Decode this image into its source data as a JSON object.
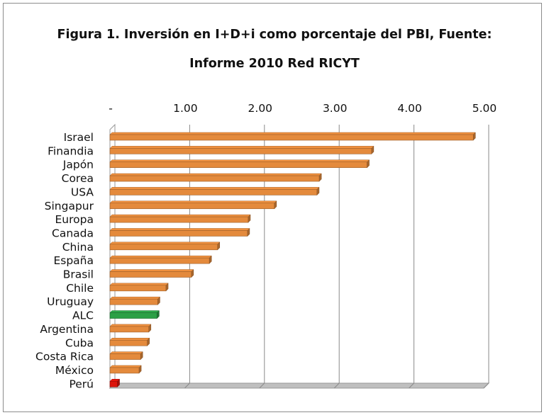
{
  "chart_data": {
    "type": "bar",
    "orientation": "horizontal",
    "title": "Figura 1. Inversión en I+D+i como porcentaje del PBI, Fuente:",
    "subtitle": "Informe 2010 Red RICYT",
    "xlim": [
      0,
      5
    ],
    "x_axis_position": "top",
    "grid": true,
    "tick_labels": [
      "-",
      "1.00",
      "2.00",
      "3.00",
      "4.00",
      "5.00"
    ],
    "tick_values": [
      0,
      1,
      2,
      3,
      4,
      5
    ],
    "categories": [
      "Israel",
      "Finandia",
      "Japón",
      "Corea",
      "USA",
      "Singapur",
      "Europa",
      "Canada",
      "China",
      "España",
      "Brasil",
      "Chile",
      "Uruguay",
      "ALC",
      "Argentina",
      "Cuba",
      "Costa Rica",
      "México",
      "Perú"
    ],
    "values": [
      4.86,
      3.5,
      3.44,
      2.8,
      2.77,
      2.2,
      1.85,
      1.84,
      1.44,
      1.33,
      1.09,
      0.75,
      0.64,
      0.63,
      0.52,
      0.5,
      0.41,
      0.39,
      0.1
    ],
    "bar_colors": [
      "#f0913f",
      "#f0913f",
      "#f0913f",
      "#f0913f",
      "#f0913f",
      "#f0913f",
      "#f0913f",
      "#f0913f",
      "#f0913f",
      "#f0913f",
      "#f0913f",
      "#f0913f",
      "#f0913f",
      "#2da84a",
      "#f0913f",
      "#f0913f",
      "#f0913f",
      "#f0913f",
      "#e8140c"
    ],
    "colors": {
      "default": "#f0913f",
      "highlight": "#2da84a",
      "lowest": "#e8140c"
    }
  }
}
